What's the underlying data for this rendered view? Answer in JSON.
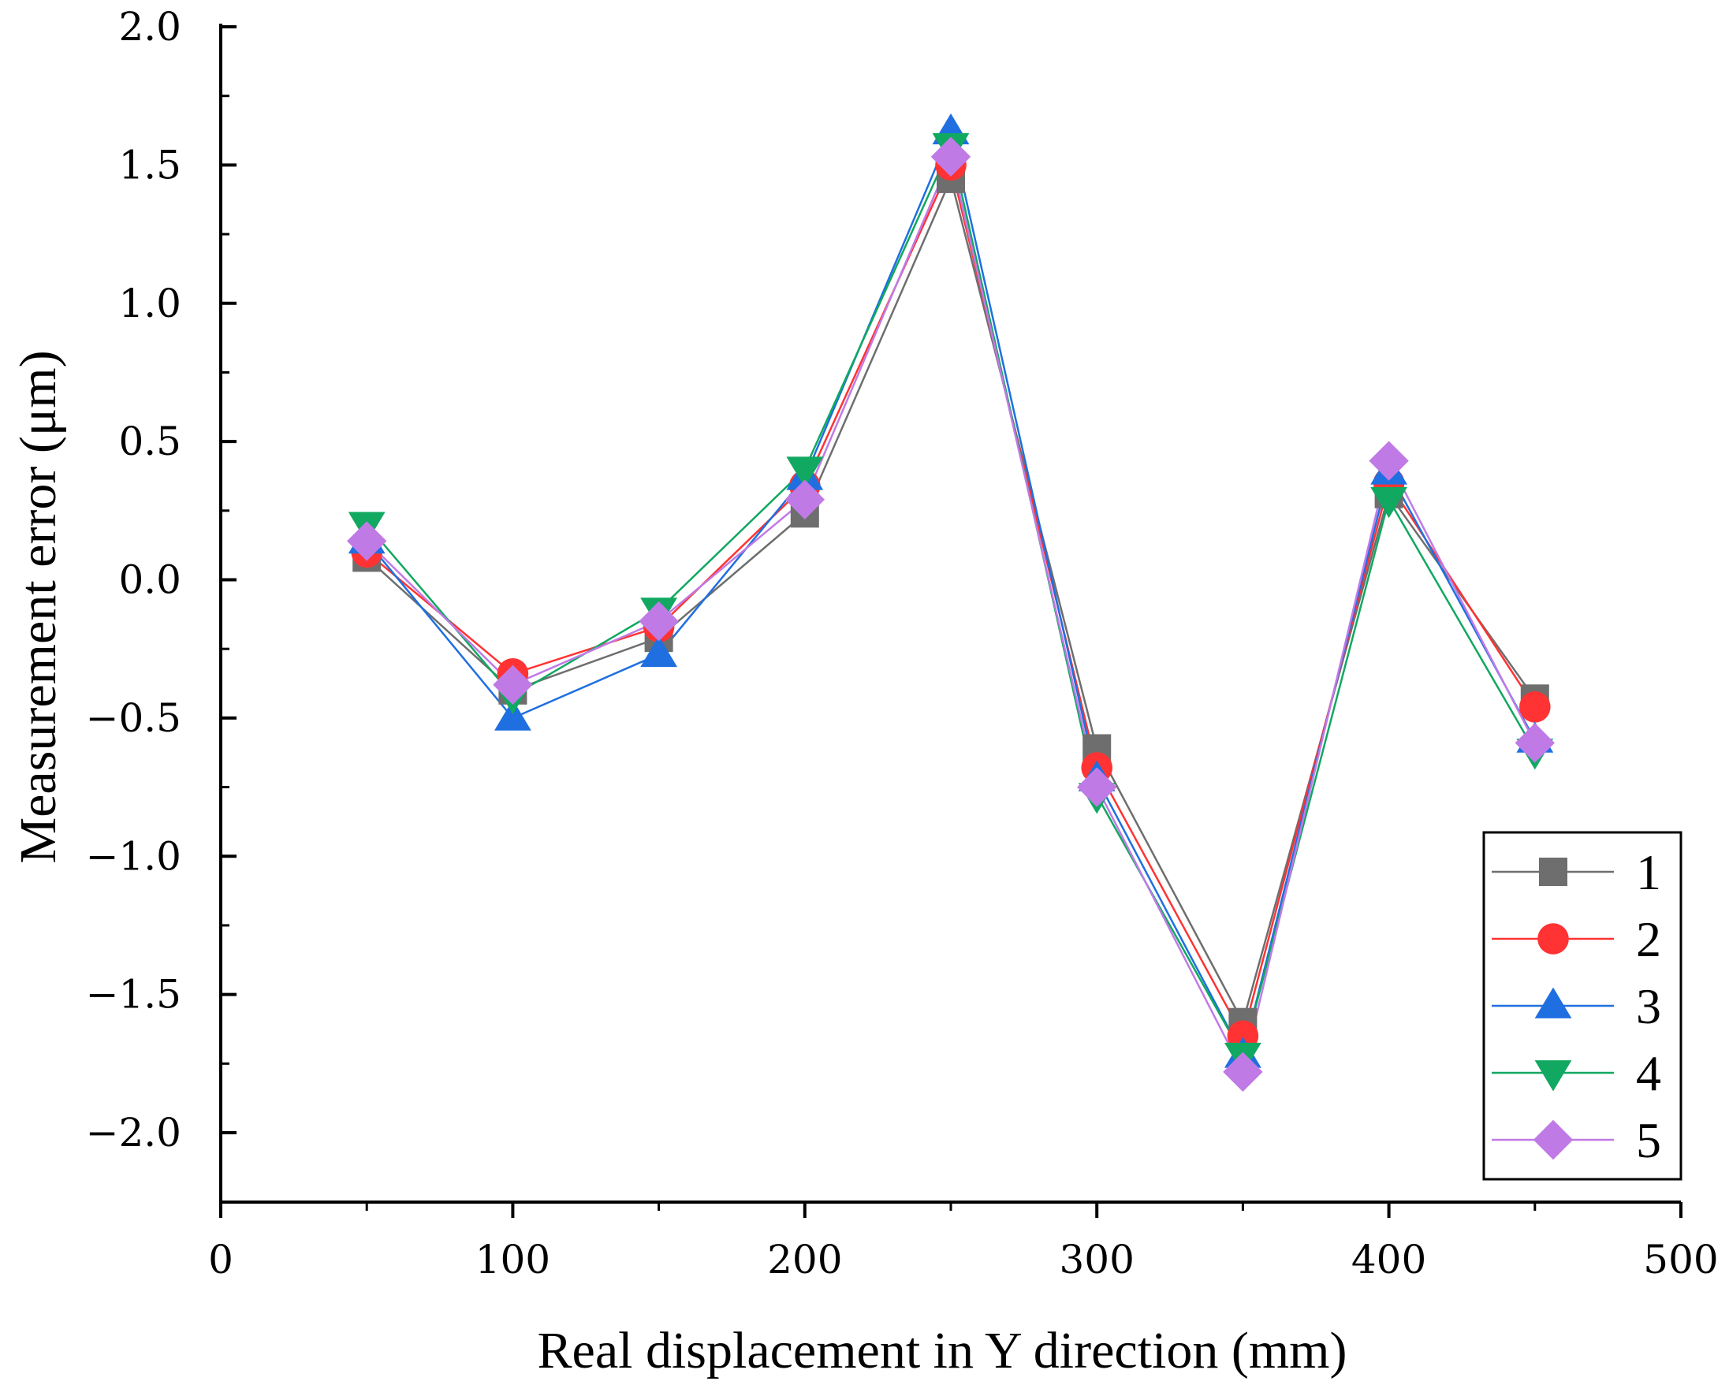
{
  "chart_data": {
    "type": "line",
    "title": "",
    "xlabel": "Real displacement in Y direction (mm)",
    "ylabel": "Measurement error (μm)",
    "xlim": [
      0,
      500
    ],
    "ylim": [
      -2.25,
      2.0
    ],
    "x_ticks": [
      0,
      100,
      200,
      300,
      400,
      500
    ],
    "x_tick_labels": [
      "0",
      "100",
      "200",
      "300",
      "400",
      "500"
    ],
    "y_ticks": [
      2.0,
      1.5,
      1.0,
      0.5,
      0.0,
      -0.5,
      -1.0,
      -1.5,
      -2.0
    ],
    "y_tick_labels": [
      "2.0",
      "1.5",
      "1.0",
      "0.5",
      "0.0",
      "−0.5",
      "−1.0",
      "−1.5",
      "−2.0"
    ],
    "grid": false,
    "legend_position": "bottom-right",
    "x": [
      50,
      100,
      150,
      200,
      250,
      300,
      350,
      400,
      450
    ],
    "series": [
      {
        "name": "1",
        "color": "#6e6e6e",
        "marker": "square",
        "values": [
          0.08,
          -0.4,
          -0.21,
          0.24,
          1.45,
          -0.61,
          -1.6,
          0.31,
          -0.43
        ]
      },
      {
        "name": "2",
        "color": "#ff3333",
        "marker": "circle",
        "values": [
          0.1,
          -0.34,
          -0.17,
          0.34,
          1.5,
          -0.68,
          -1.65,
          0.35,
          -0.46
        ]
      },
      {
        "name": "3",
        "color": "#1f6fe0",
        "marker": "triangle-up",
        "values": [
          0.14,
          -0.5,
          -0.27,
          0.37,
          1.62,
          -0.72,
          -1.72,
          0.39,
          -0.58
        ]
      },
      {
        "name": "4",
        "color": "#11a861",
        "marker": "triangle-down",
        "values": [
          0.2,
          -0.42,
          -0.11,
          0.4,
          1.57,
          -0.78,
          -1.72,
          0.29,
          -0.62
        ]
      },
      {
        "name": "5",
        "color": "#c07ae6",
        "marker": "diamond",
        "values": [
          0.14,
          -0.38,
          -0.15,
          0.29,
          1.53,
          -0.75,
          -1.78,
          0.43,
          -0.59
        ]
      }
    ]
  }
}
